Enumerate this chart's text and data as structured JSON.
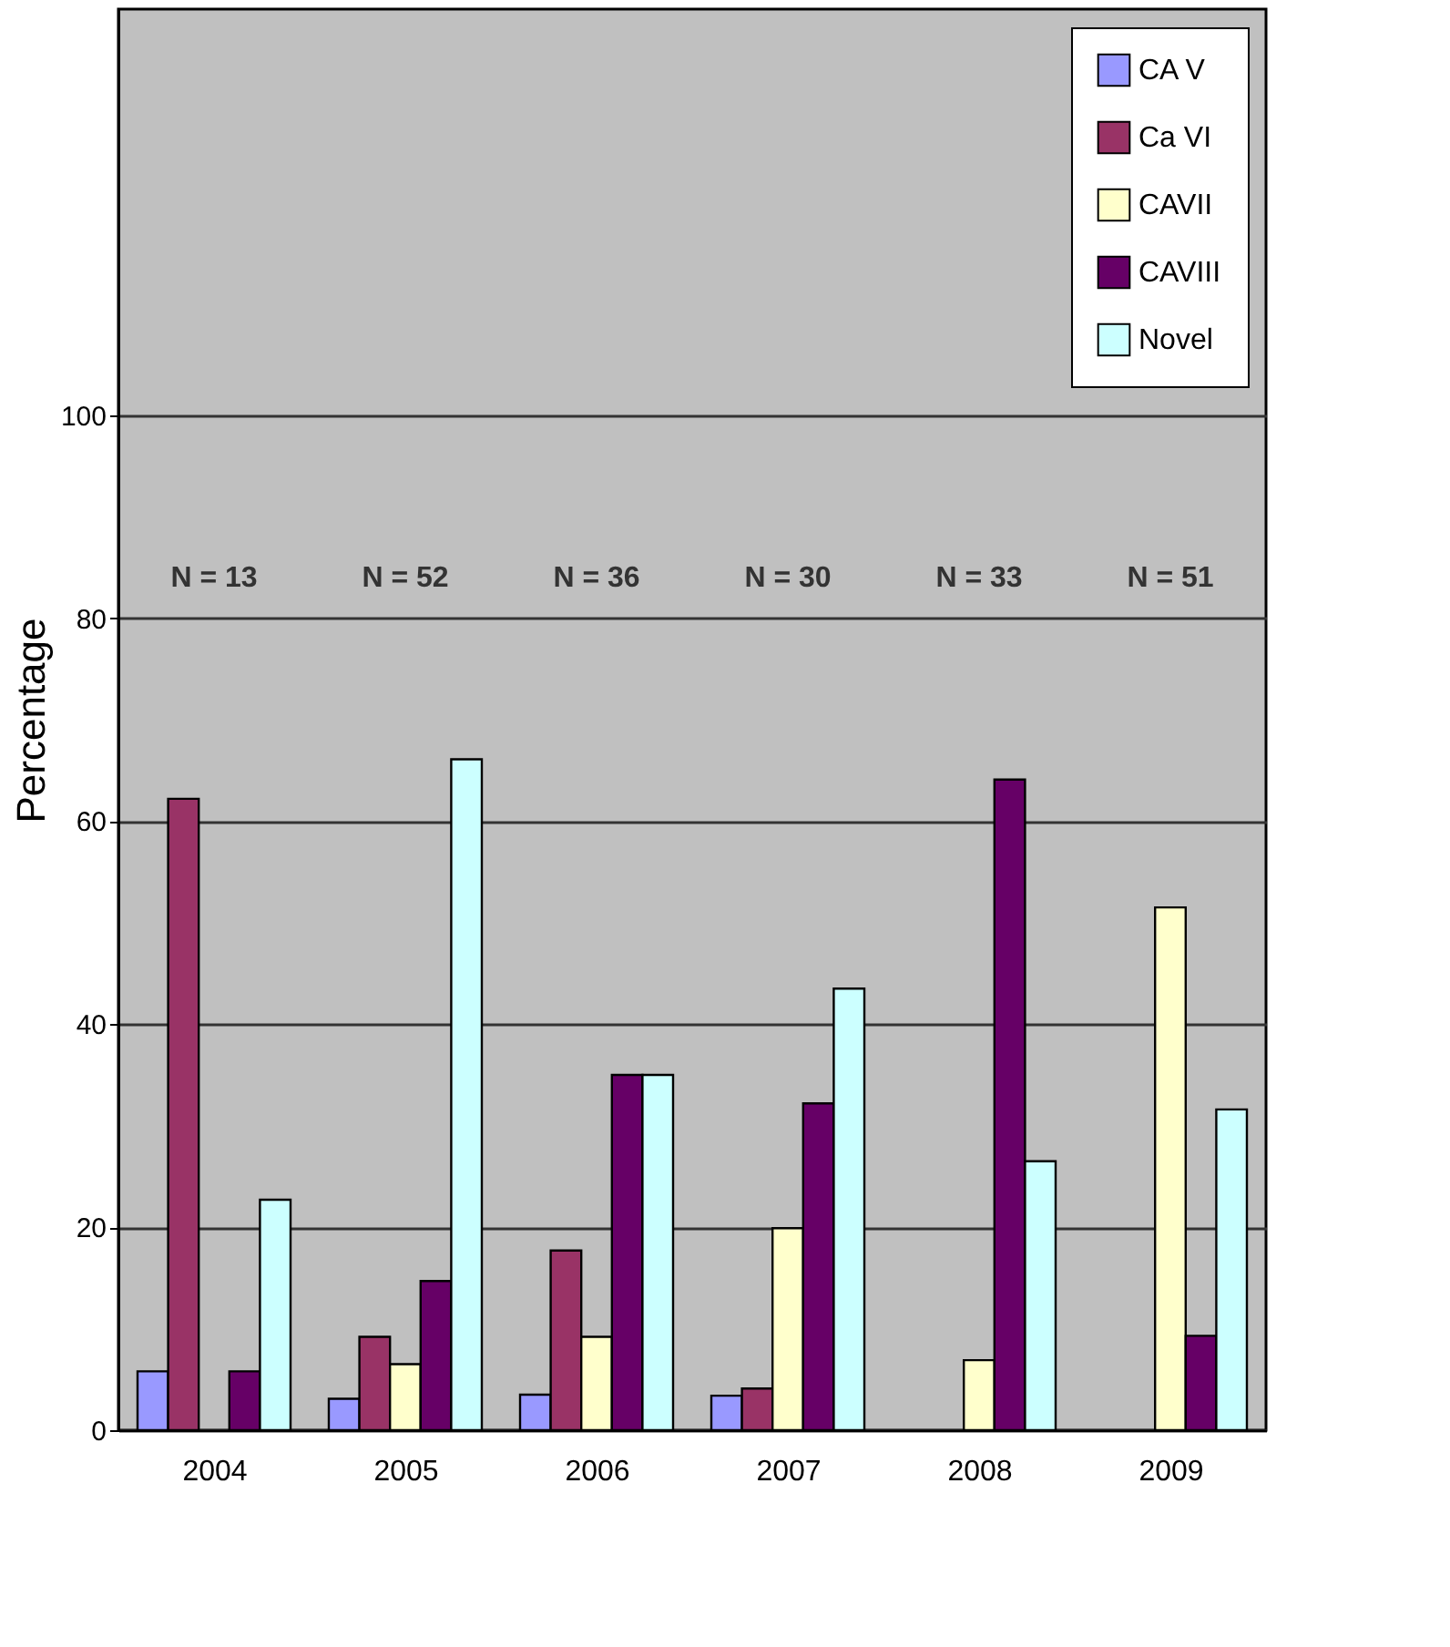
{
  "chart_data": {
    "type": "bar",
    "ylabel": "Percentage",
    "categories": [
      "2004",
      "2005",
      "2006",
      "2007",
      "2008",
      "2009"
    ],
    "series": [
      {
        "name": "CA V",
        "color": "#9999ff",
        "values": [
          5.8,
          3.1,
          3.5,
          3.4,
          null,
          null
        ]
      },
      {
        "name": "Ca VI",
        "color": "#993366",
        "values": [
          62.2,
          9.2,
          17.7,
          4.1,
          null,
          null
        ]
      },
      {
        "name": "CAVII",
        "color": "#ffffcc",
        "values": [
          null,
          6.5,
          9.2,
          19.9,
          6.9,
          51.5
        ]
      },
      {
        "name": "CAVIII",
        "color": "#660066",
        "values": [
          5.8,
          14.7,
          35.0,
          32.2,
          64.1,
          9.3
        ]
      },
      {
        "name": "Novel",
        "color": "#ccffff",
        "values": [
          22.7,
          66.1,
          35.0,
          43.5,
          26.5,
          31.6
        ]
      }
    ],
    "ylim": [
      0,
      140
    ],
    "yticks": [
      0,
      20,
      40,
      60,
      80,
      100
    ],
    "grid": "y",
    "legend": "top right",
    "annotations": [
      "N = 13",
      "N = 52",
      "N = 36",
      "N = 30",
      "N = 33",
      "N = 51"
    ]
  }
}
